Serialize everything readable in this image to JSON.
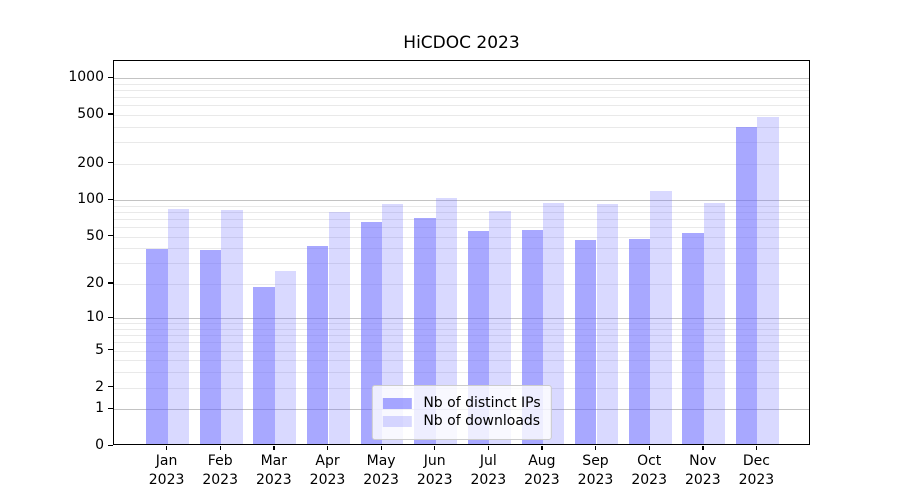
{
  "chart_data": {
    "type": "bar",
    "title": "HiCDOC 2023",
    "categories": [
      "Jan",
      "Feb",
      "Mar",
      "Apr",
      "May",
      "Jun",
      "Jul",
      "Aug",
      "Sep",
      "Oct",
      "Nov",
      "Dec"
    ],
    "category_year": "2023",
    "series": [
      {
        "name": "Nb of distinct IPs",
        "color": "rgba(102,102,255,0.57)",
        "values": [
          38,
          37,
          18,
          40,
          64,
          69,
          54,
          55,
          45,
          46,
          52,
          385
        ]
      },
      {
        "name": "Nb of downloads",
        "color": "rgba(102,102,255,0.25)",
        "values": [
          81,
          80,
          25,
          77,
          89,
          100,
          79,
          92,
          90,
          114,
          91,
          460
        ]
      }
    ],
    "yscale": "log1p",
    "ylim": [
      0,
      1400
    ],
    "ytick_values": [
      0,
      1,
      2,
      5,
      10,
      20,
      50,
      100,
      200,
      500,
      1000
    ],
    "grid": {
      "major": [
        1,
        10,
        100,
        1000
      ],
      "minor": [
        2,
        3,
        4,
        5,
        6,
        7,
        8,
        9,
        20,
        30,
        40,
        50,
        60,
        70,
        80,
        90,
        200,
        300,
        400,
        500,
        600,
        700,
        800,
        900
      ],
      "major_color": "#c3c3c3",
      "minor_color": "#e9e9e9"
    },
    "legend_position": "lower center",
    "axis_color": "#000000",
    "background_color": "#ffffff"
  }
}
